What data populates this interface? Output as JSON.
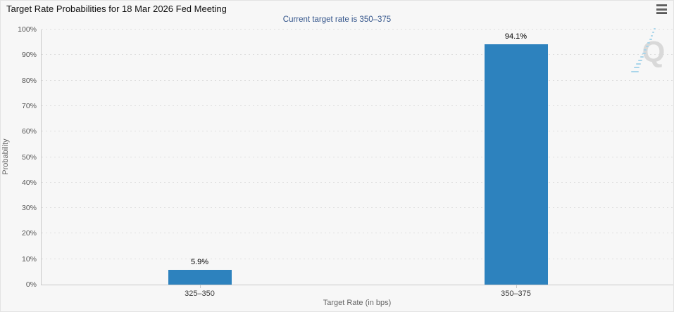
{
  "header": {
    "menu_icon": "hamburger-icon"
  },
  "watermark": {
    "letter": "Q"
  },
  "colors": {
    "page_background": "#f7f7f7",
    "bar": "#2d82be",
    "subtitle_text": "#34558b",
    "gridline": "#dedede",
    "axis_line": "#c9c9c9",
    "watermark_letter": "#d9d9d9",
    "watermark_dashes": "#a9d5ea"
  },
  "chart_data": {
    "type": "bar",
    "title": "Target Rate Probabilities for 18 Mar 2026 Fed Meeting",
    "subtitle": "Current target rate is 350–375",
    "categories": [
      "325–350",
      "350–375"
    ],
    "values": [
      5.9,
      94.1
    ],
    "data_labels": [
      "5.9%",
      "94.1%"
    ],
    "xlabel": "Target Rate (in bps)",
    "ylabel": "Probability",
    "ylim": [
      0,
      100
    ],
    "ytick_step": 10,
    "ytick_suffix": "%",
    "ytick_labels": [
      "0%",
      "10%",
      "20%",
      "30%",
      "40%",
      "50%",
      "60%",
      "70%",
      "80%",
      "90%",
      "100%"
    ],
    "grid": "horizontal-dotted",
    "legend": "none",
    "bar_color": "#2d82be"
  }
}
